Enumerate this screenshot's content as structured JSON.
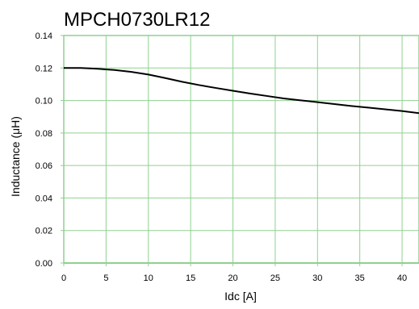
{
  "chart_data": {
    "type": "line",
    "title": "MPCH0730LR12",
    "xlabel": "Idc [A]",
    "ylabel": "Inductance (μH)",
    "xlim": [
      0,
      42
    ],
    "ylim": [
      0,
      0.14
    ],
    "x_ticks": [
      "0",
      "5",
      "10",
      "15",
      "20",
      "25",
      "30",
      "35",
      "40"
    ],
    "y_ticks": [
      "0.00",
      "0.02",
      "0.04",
      "0.06",
      "0.08",
      "0.10",
      "0.12",
      "0.14"
    ],
    "grid": true,
    "grid_color": "#8fd18f",
    "line_color": "#000000",
    "series": [
      {
        "x": [
          0,
          2,
          4,
          6,
          8,
          10,
          12,
          14,
          16,
          18,
          20,
          22,
          24,
          26,
          28,
          30,
          32,
          34,
          36,
          38,
          40,
          42
        ],
        "values": [
          0.12,
          0.12,
          0.1195,
          0.1188,
          0.1176,
          0.116,
          0.1138,
          0.1115,
          0.1095,
          0.1077,
          0.106,
          0.1043,
          0.1028,
          0.1013,
          0.1001,
          0.099,
          0.0978,
          0.0966,
          0.0956,
          0.0946,
          0.0935,
          0.0922
        ]
      }
    ]
  }
}
